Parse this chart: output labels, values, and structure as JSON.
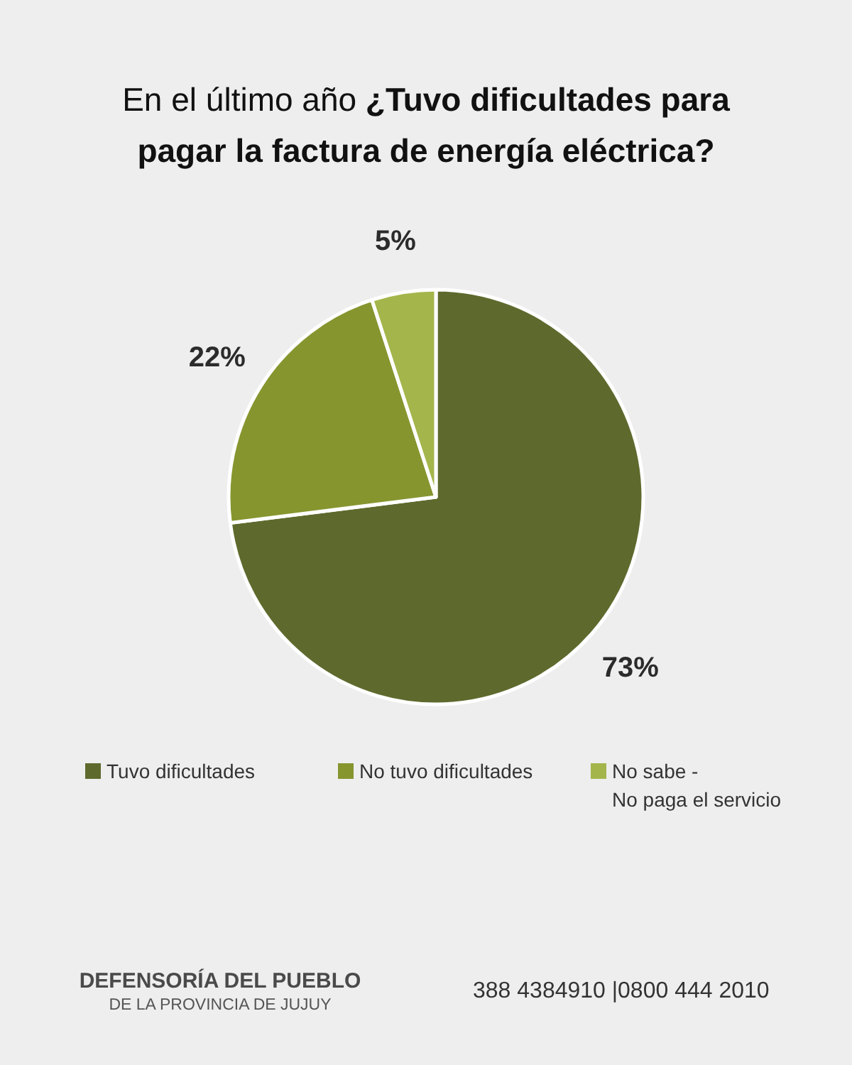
{
  "chart_data": {
    "type": "pie",
    "title": "En el último año ¿Tuvo dificultades para pagar la factura de energía eléctrica?",
    "categories": [
      "Tuvo dificultades",
      "No tuvo dificultades",
      "No sabe -\nNo paga el servicio"
    ],
    "values": [
      73,
      22,
      5
    ],
    "colors": [
      "#5e6a2d",
      "#87952f",
      "#a4b54b"
    ],
    "value_labels": [
      "73%",
      "22%",
      "5%"
    ],
    "legend": "bottom",
    "annotations": [
      "DEFENSORÍA DEL PUEBLO",
      "DE LA PROVINCIA DE JUJUY",
      "388 4384910 |0800 444 2010"
    ]
  }
}
